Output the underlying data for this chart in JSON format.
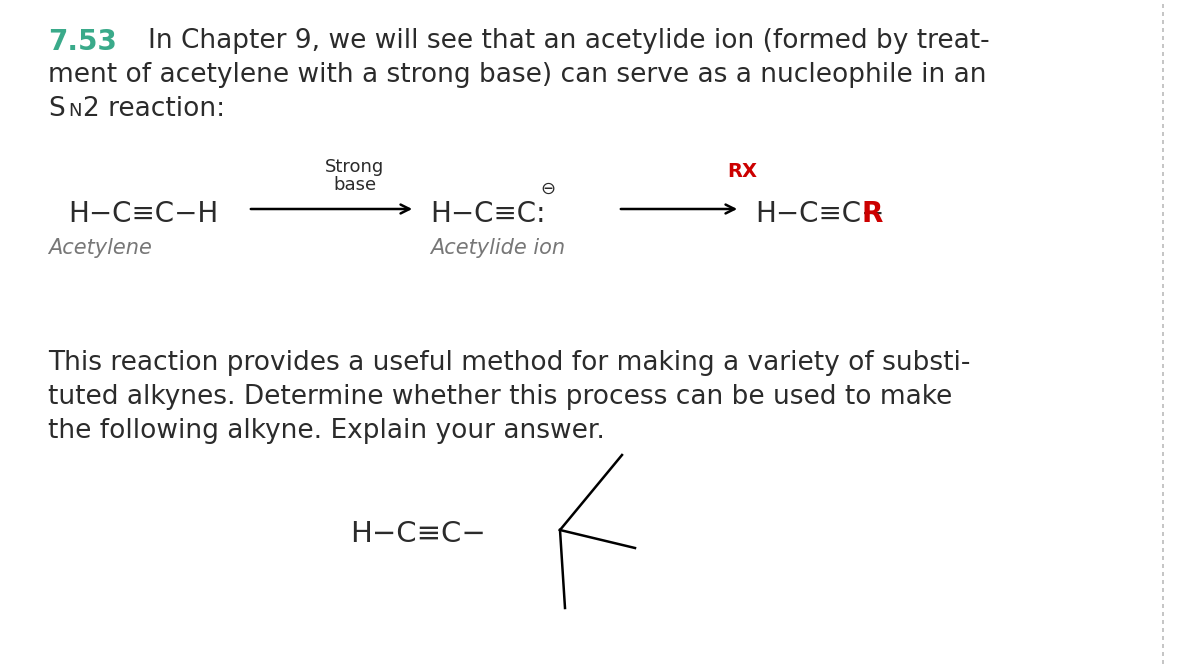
{
  "bg_color": "#ffffff",
  "text_color": "#2b2b2b",
  "gray_color": "#777777",
  "red_color": "#cc0000",
  "teal_color": "#3aaa8a",
  "dashed_color": "#bbbbbb",
  "problem_number": "7.53",
  "intro_line1": "In Chapter 9, we will see that an acetylide ion (formed by treat-",
  "intro_line2": "ment of acetylene with a strong base) can serve as a nucleophile in an",
  "intro_S": "S",
  "intro_N": "N",
  "intro_rest": "2 reaction:",
  "strong_line1": "Strong",
  "strong_line2": "base",
  "rx_label": "RX",
  "acetylene_formula": "H−C≡C−H",
  "acetylide_formula": "H−C≡C:",
  "product_part1": "H−C≡C−",
  "product_R": "R",
  "acetylene_label": "Acetylene",
  "acetylide_label": "Acetylide ion",
  "neg_charge": "⊖",
  "body_line1": "This reaction provides a useful method for making a variety of substi-",
  "body_line2": "tuted alkynes. Determine whether this process can be used to make",
  "body_line3": "the following alkyne. Explain your answer.",
  "alkyne_text": "H−C≡C−",
  "figsize": [
    12.0,
    6.64
  ],
  "dpi": 100
}
